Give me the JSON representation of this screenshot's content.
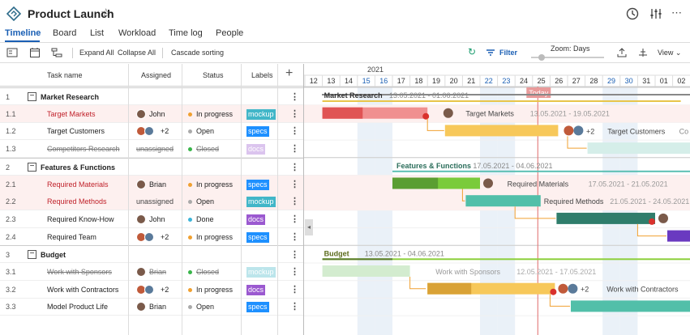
{
  "title": "Product Launch",
  "tabs": [
    "Timeline",
    "Board",
    "List",
    "Workload",
    "Time log",
    "People"
  ],
  "toolbar": {
    "expand_all": "Expand All",
    "collapse_all": "Collapse All",
    "cascade": "Cascade sorting",
    "filter": "Filter",
    "zoom": "Zoom: Days",
    "view": "View"
  },
  "columns": {
    "task": "Task name",
    "assigned": "Assigned",
    "status": "Status",
    "labels": "Labels",
    "add": "+"
  },
  "year": "2021",
  "days": [
    "12",
    "13",
    "14",
    "15",
    "16",
    "17",
    "18",
    "19",
    "20",
    "21",
    "22",
    "23",
    "24",
    "25",
    "26",
    "27",
    "28",
    "29",
    "30",
    "31",
    "01",
    "02"
  ],
  "weekend_days": [
    "15",
    "16",
    "22",
    "23",
    "29",
    "30"
  ],
  "today_label": "Today",
  "colors": {
    "accent": "#1a5fb4",
    "today": "#e06c6c",
    "mockup": "#41b6c8",
    "specs": "#1e90ff",
    "docs": "#9b59d0",
    "inprogress": "#f0a030",
    "open": "#aaaaaa",
    "done": "#3cb4d8",
    "closed": "#39b54a"
  },
  "rows": [
    {
      "num": "1",
      "name": "Market Research",
      "group": true
    },
    {
      "num": "1.1",
      "name": "Target Markets",
      "assigned": "John",
      "status": "In progress",
      "label": "mockup",
      "red": true
    },
    {
      "num": "1.2",
      "name": "Target Customers",
      "assigned": "+2",
      "status": "Open",
      "label": "specs"
    },
    {
      "num": "1.3",
      "name": "Competitors Research",
      "assigned": "unassigned",
      "status": "Closed",
      "label": "docs",
      "struck": true
    },
    {
      "num": "2",
      "name": "Features & Functions",
      "group": true
    },
    {
      "num": "2.1",
      "name": "Required Materials",
      "assigned": "Brian",
      "status": "In progress",
      "label": "specs",
      "red": true
    },
    {
      "num": "2.2",
      "name": "Required Methods",
      "assigned": "unassigned",
      "status": "Open",
      "label": "mockup",
      "red": true
    },
    {
      "num": "2.3",
      "name": "Required Know-How",
      "assigned": "John",
      "status": "Done",
      "label": "docs"
    },
    {
      "num": "2.4",
      "name": "Required Team",
      "assigned": "+2",
      "status": "In progress",
      "label": "specs"
    },
    {
      "num": "3",
      "name": "Budget",
      "group": true
    },
    {
      "num": "3.1",
      "name": "Work with Sponsors",
      "assigned": "Brian",
      "status": "Closed",
      "label": "mockup",
      "struck": true
    },
    {
      "num": "3.2",
      "name": "Work with Contractors",
      "assigned": "+2",
      "status": "In progress",
      "label": "docs"
    },
    {
      "num": "3.3",
      "name": "Model Product Life",
      "assigned": "Brian",
      "status": "Open",
      "label": "specs"
    }
  ],
  "gantt": [
    {
      "label": "Market Research",
      "dates": "13.05.2021 - 01.06.2021"
    },
    {
      "label": "Target Markets",
      "dates": "13.05.2021 - 19.05.2021"
    },
    {
      "label": "Target Customers",
      "extra": "+2",
      "dates": "Co"
    },
    {
      "label": "Features & Functions",
      "dates": "17.05.2021 - 04.06.2021"
    },
    {
      "label": "Required Materials",
      "dates": "17.05.2021 - 21.05.2021"
    },
    {
      "label": "Required Methods",
      "dates": "21.05.2021 - 24.05.2021"
    },
    {
      "label": "Budget",
      "dates": "13.05.2021 - 04.06.2021"
    },
    {
      "label": "Work with Sponsors",
      "dates": "12.05.2021 - 17.05.2021"
    },
    {
      "label": "Work with Contractors",
      "extra": "+2"
    }
  ]
}
